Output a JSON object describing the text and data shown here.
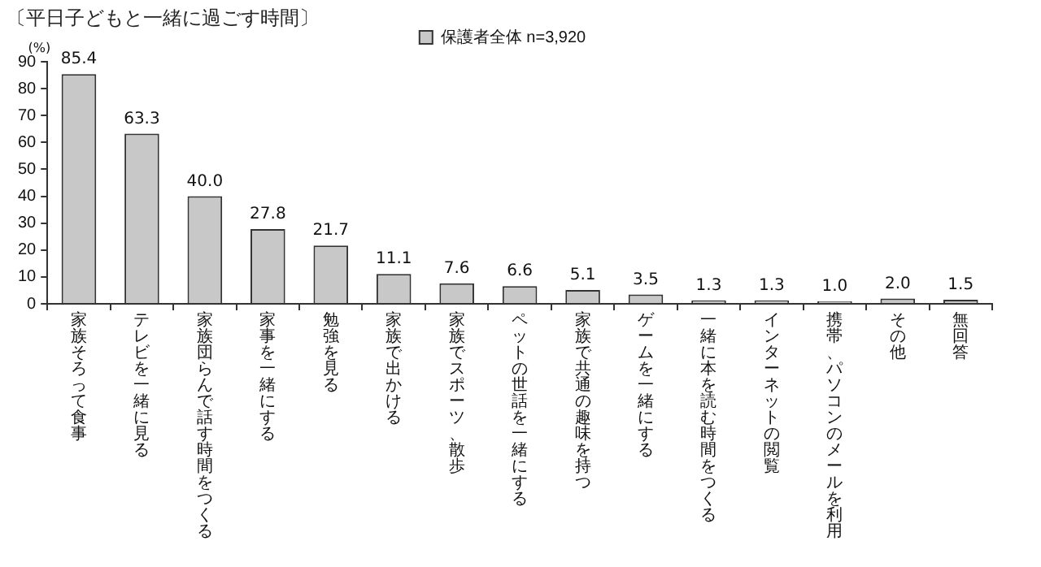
{
  "chart_data": {
    "type": "bar",
    "title": "〔平日子どもと一緒に過ごす時間〕",
    "ylabel": "(%)",
    "categories": [
      "家族そろって食事",
      "テレビを一緒に見る",
      "家族団らんで話す時間をつくる",
      "家事を一緒にする",
      "勉強を見る",
      "家族で出かける",
      "家族でスポーツ、散歩",
      "ペットの世話を一緒にする",
      "家族で共通の趣味を持つ",
      "ゲームを一緒にする",
      "一緒に本を読む時間をつくる",
      "インターネットの閲覧",
      "携帯、パソコンのメールを利用",
      "その他",
      "無回答"
    ],
    "series": [
      {
        "name": "保護者全体 n=3,920",
        "color": "#c8c8c8",
        "values": [
          85.4,
          63.3,
          40.0,
          27.8,
          21.7,
          11.1,
          7.6,
          6.6,
          5.1,
          3.5,
          1.3,
          1.3,
          1.0,
          2.0,
          1.5
        ],
        "value_labels": [
          "85.4",
          "63.3",
          "40.0",
          "27.8",
          "21.7",
          "11.1",
          "7.6",
          "6.6",
          "5.1",
          "3.5",
          "1.3",
          "1.3",
          "1.0",
          "2.0",
          "1.5"
        ]
      }
    ],
    "ylim": [
      0,
      90
    ],
    "yticks": [
      0,
      10,
      20,
      30,
      40,
      50,
      60,
      70,
      80,
      90
    ],
    "grid": false,
    "legend": "top"
  }
}
